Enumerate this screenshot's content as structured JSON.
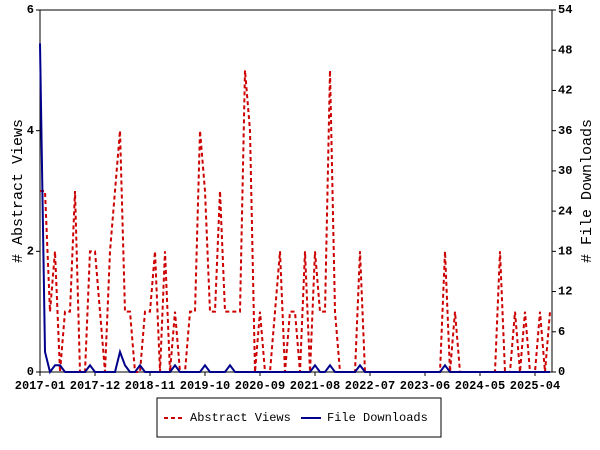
{
  "chart_data": {
    "type": "line",
    "ylabel": "# Abstract Views",
    "y2label": "# File Downloads",
    "categories": [
      "2017-01",
      null,
      null,
      null,
      null,
      null,
      null,
      null,
      null,
      null,
      null,
      "2017-12",
      null,
      null,
      null,
      null,
      null,
      null,
      null,
      null,
      null,
      null,
      "2018-11",
      null,
      null,
      null,
      null,
      null,
      null,
      null,
      null,
      null,
      null,
      "2019-10",
      null,
      null,
      null,
      null,
      null,
      null,
      null,
      null,
      null,
      null,
      "2020-09",
      null,
      null,
      null,
      null,
      null,
      null,
      null,
      null,
      null,
      null,
      "2021-08",
      null,
      null,
      null,
      null,
      null,
      null,
      null,
      null,
      null,
      null,
      "2022-07",
      null,
      null,
      null,
      null,
      null,
      null,
      null,
      null,
      null,
      null,
      "2023-06",
      null,
      null,
      null,
      null,
      null,
      null,
      null,
      null,
      null,
      null,
      "2024-05",
      null,
      null,
      null,
      null,
      null,
      null,
      null,
      null,
      null,
      null,
      "2025-04",
      null,
      null,
      null
    ],
    "ylim": [
      0,
      6
    ],
    "yticks": [
      0,
      2,
      4,
      6
    ],
    "y2lim": [
      0,
      54
    ],
    "y2ticks": [
      0,
      6,
      12,
      18,
      24,
      30,
      36,
      42,
      48,
      54
    ],
    "legend": "bottom",
    "series": [
      {
        "name": "Abstract Views",
        "color": "#cc0000",
        "dashed": true,
        "values": [
          3,
          3,
          1,
          2,
          0,
          1,
          1,
          3,
          0,
          0,
          2,
          2,
          1,
          0,
          2,
          3,
          4,
          1,
          1,
          0,
          0,
          1,
          1,
          2,
          0,
          2,
          0,
          1,
          0,
          0,
          1,
          1,
          4,
          3,
          1,
          1,
          3,
          1,
          1,
          1,
          1,
          5,
          4,
          0,
          1,
          0,
          0,
          1,
          2,
          0,
          1,
          1,
          0,
          2,
          0,
          2,
          1,
          1,
          5,
          1,
          0,
          0,
          0,
          0,
          2,
          0,
          0,
          0,
          0,
          0,
          0,
          0,
          0,
          0,
          0,
          0,
          0,
          0,
          0,
          0,
          0,
          2,
          0,
          1,
          0,
          0,
          0,
          0,
          0,
          0,
          0,
          0,
          2,
          0,
          0,
          1,
          0,
          1,
          0,
          0,
          1,
          0,
          1
        ]
      },
      {
        "name": "File Downloads",
        "color": "#00008b",
        "axis": "y2",
        "values": [
          49,
          3,
          0,
          1,
          1,
          0,
          0,
          0,
          0,
          0,
          1,
          0,
          0,
          0,
          0,
          0,
          3,
          1,
          0,
          0,
          1,
          0,
          0,
          0,
          0,
          0,
          0,
          1,
          0,
          0,
          0,
          0,
          0,
          1,
          0,
          0,
          0,
          0,
          1,
          0,
          0,
          0,
          0,
          0,
          0,
          0,
          0,
          0,
          0,
          0,
          0,
          0,
          0,
          0,
          0,
          1,
          0,
          0,
          1,
          0,
          0,
          0,
          0,
          0,
          1,
          0,
          0,
          0,
          0,
          0,
          0,
          0,
          0,
          0,
          0,
          0,
          0,
          0,
          0,
          0,
          0,
          1,
          0,
          0,
          0,
          0,
          0,
          0,
          0,
          0,
          0,
          0,
          0,
          0,
          0,
          0,
          0,
          0,
          0,
          0,
          0,
          0,
          0
        ]
      }
    ]
  }
}
